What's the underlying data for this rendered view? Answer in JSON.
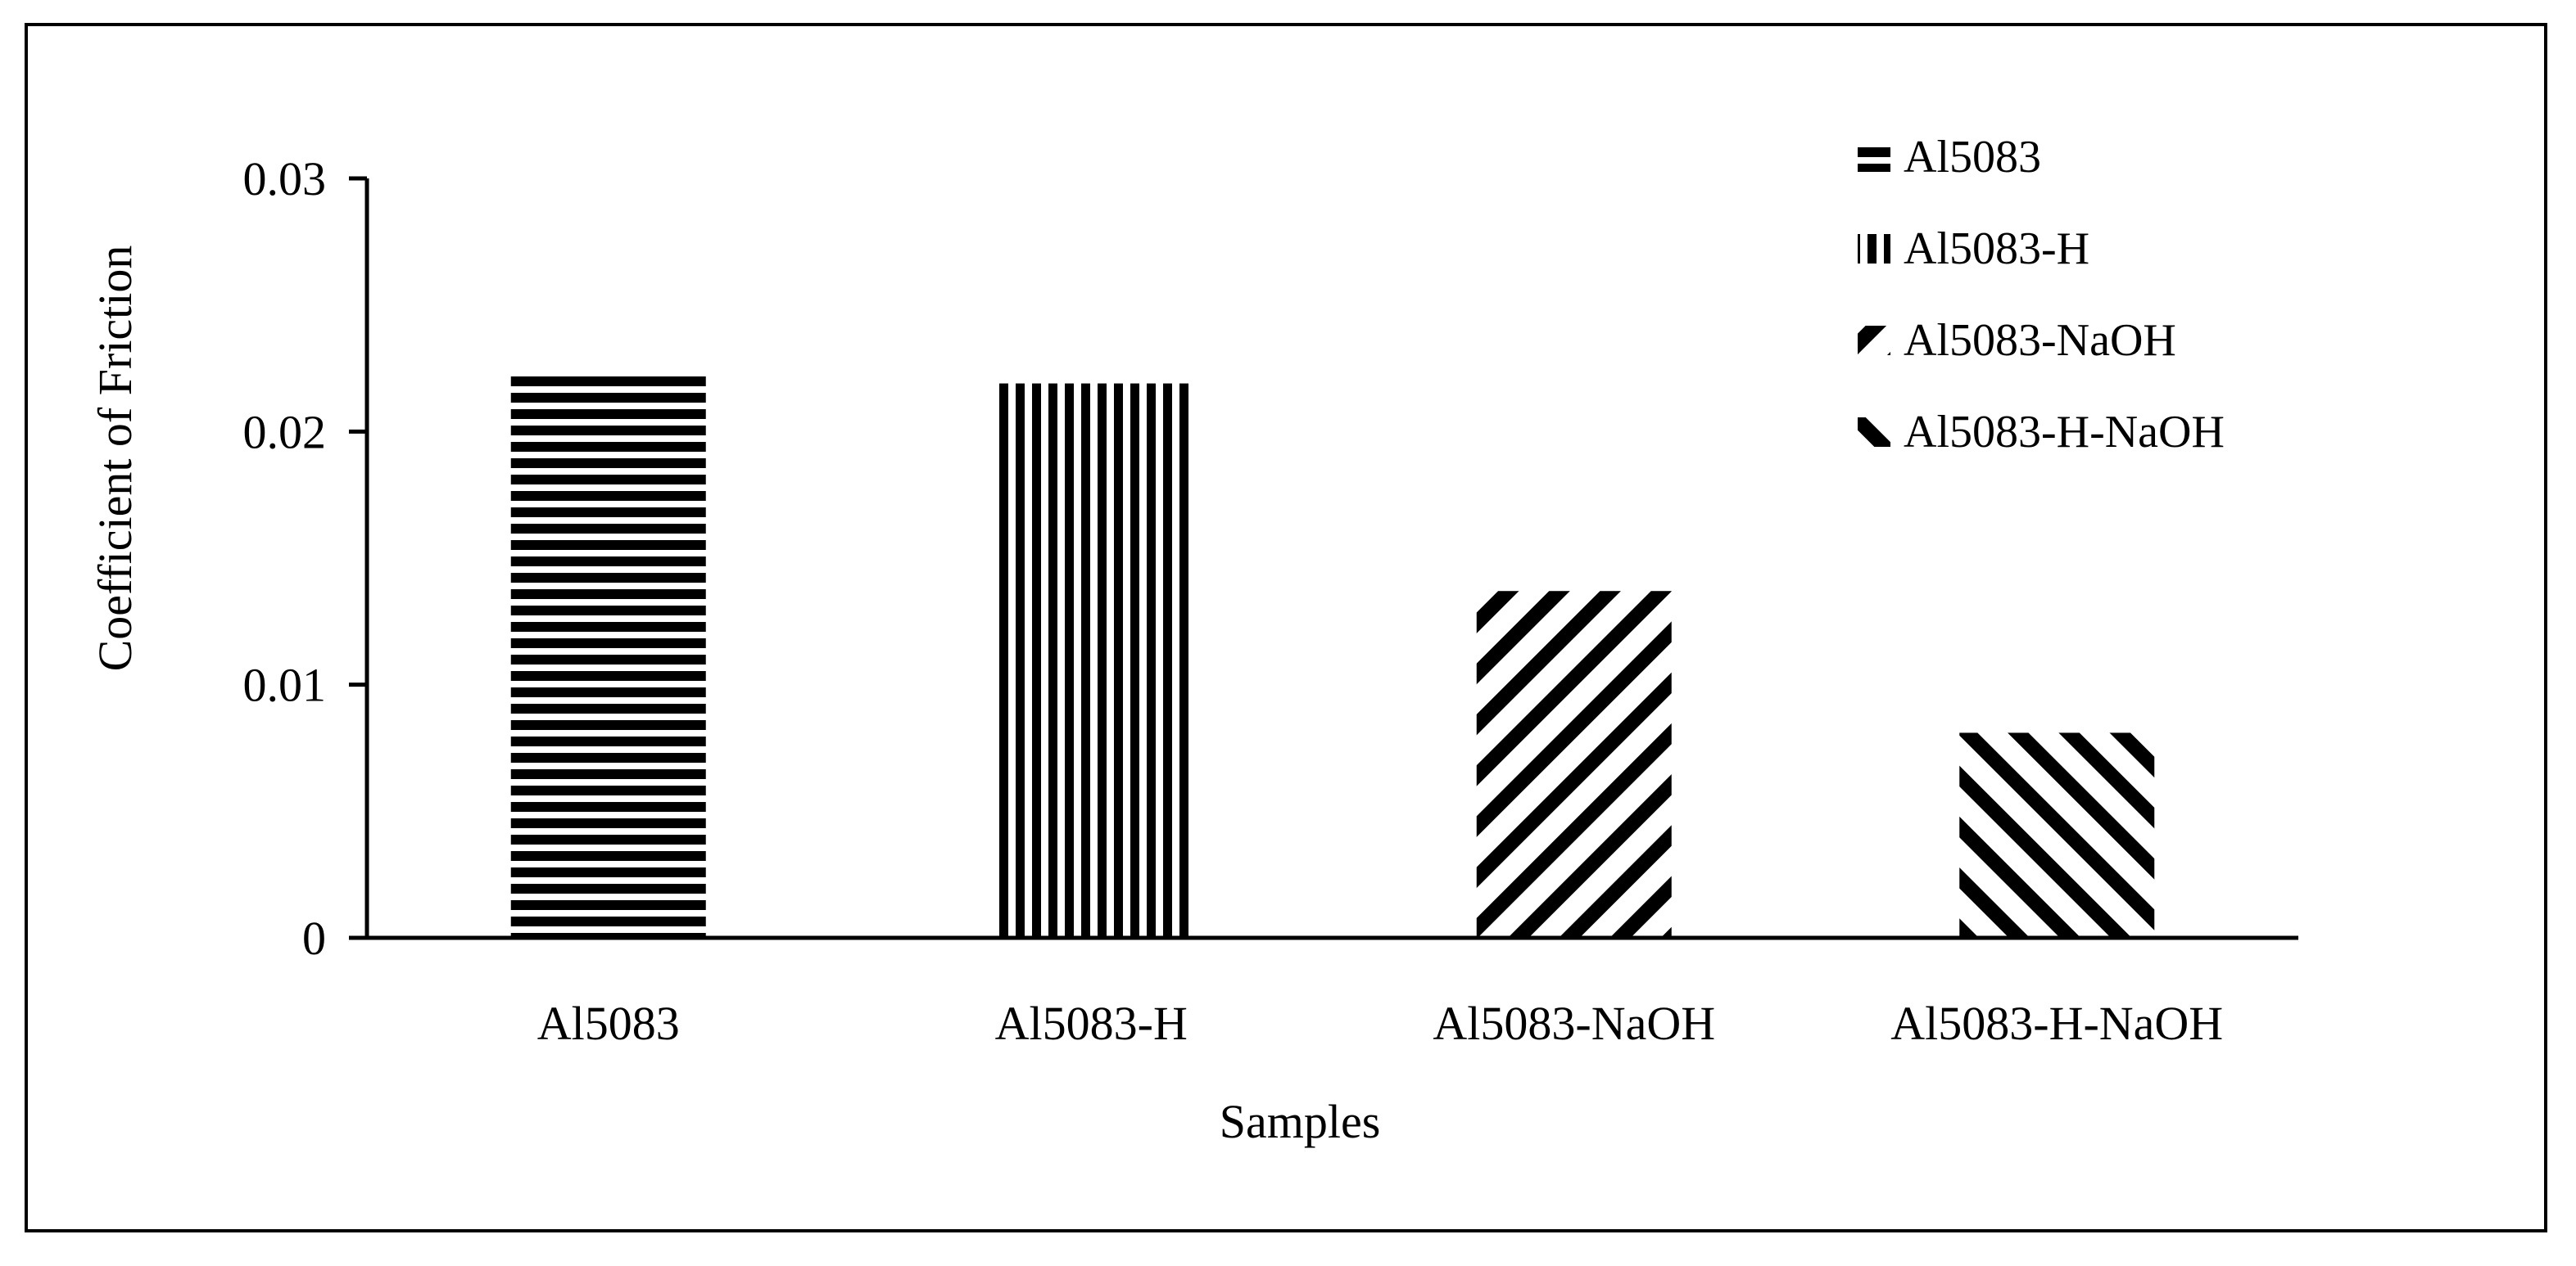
{
  "chart_data": {
    "type": "bar",
    "categories": [
      "Al5083",
      "Al5083-H",
      "Al5083-NaOH",
      "Al5083-H-NaOH"
    ],
    "series": [
      {
        "name": "Al5083",
        "category": "Al5083",
        "value": 0.0222,
        "pattern": "horizontal"
      },
      {
        "name": "Al5083-H",
        "category": "Al5083-H",
        "value": 0.0219,
        "pattern": "vertical"
      },
      {
        "name": "Al5083-NaOH",
        "category": "Al5083-NaOH",
        "value": 0.0137,
        "pattern": "diag-down"
      },
      {
        "name": "Al5083-H-NaOH",
        "category": "Al5083-H-NaOH",
        "value": 0.0081,
        "pattern": "diag-up"
      }
    ],
    "xlabel": "Samples",
    "ylabel": "Coefficient of Friction",
    "ylim": [
      0,
      0.03
    ],
    "yticks": [
      "0",
      "0.01",
      "0.02",
      "0.03"
    ],
    "ytick_values": [
      0,
      0.01,
      0.02,
      0.03
    ],
    "grid": false,
    "legend_position": "top-right",
    "colors": {
      "ink": "#000000",
      "background": "#ffffff"
    }
  }
}
